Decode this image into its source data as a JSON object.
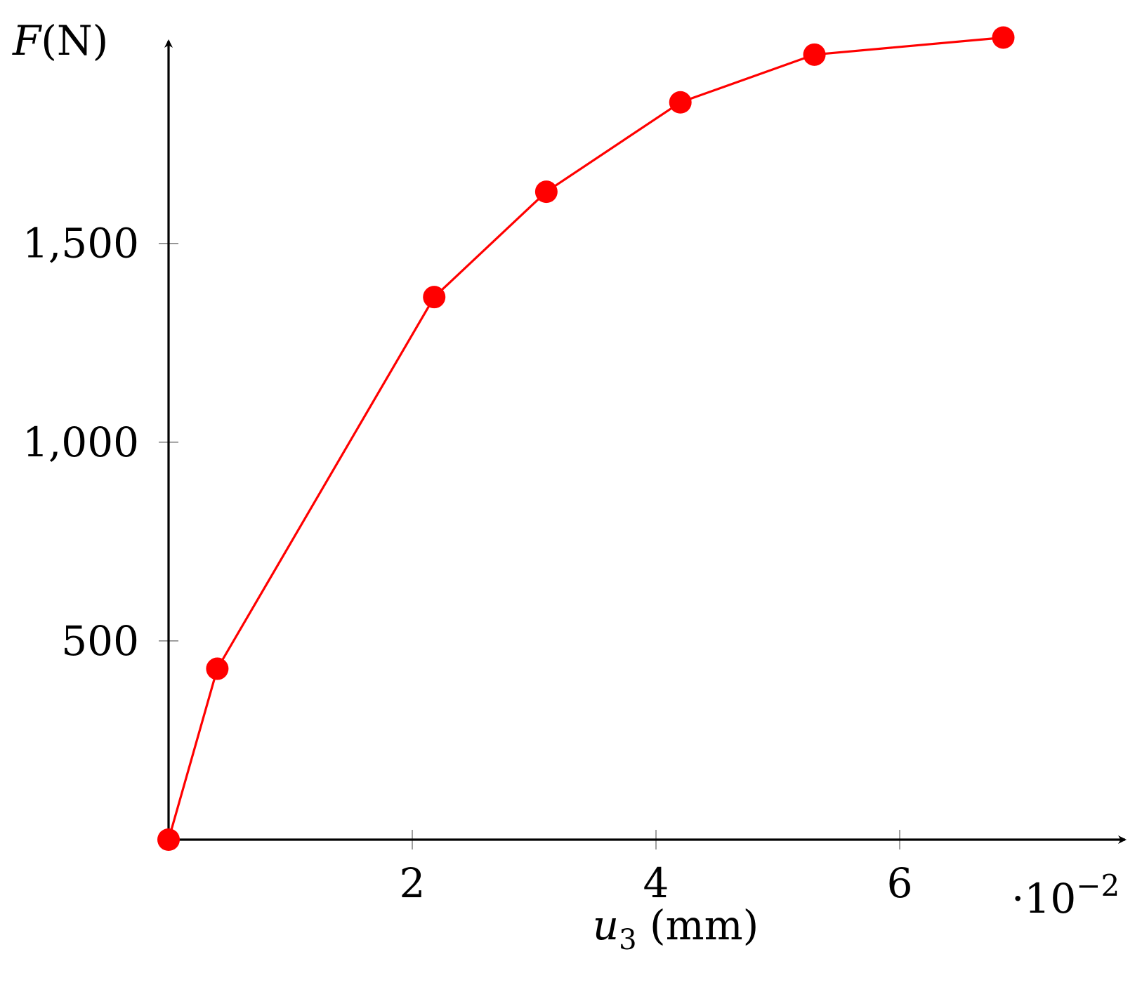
{
  "chart_data": {
    "type": "line",
    "series": [
      {
        "color": "#ff0000",
        "marker": "circle",
        "points": [
          {
            "x": 0.0,
            "y": 0
          },
          {
            "x": 0.4,
            "y": 430
          },
          {
            "x": 2.18,
            "y": 1365
          },
          {
            "x": 3.1,
            "y": 1630
          },
          {
            "x": 4.2,
            "y": 1855
          },
          {
            "x": 5.3,
            "y": 1975
          },
          {
            "x": 6.85,
            "y": 2018
          }
        ]
      }
    ],
    "x_ticks": [
      {
        "value": 2,
        "label": "2"
      },
      {
        "value": 4,
        "label": "4"
      },
      {
        "value": 6,
        "label": "6"
      }
    ],
    "y_ticks": [
      {
        "value": 500,
        "label": "500"
      },
      {
        "value": 1000,
        "label": "1,000"
      },
      {
        "value": 1500,
        "label": "1,500"
      }
    ],
    "xlim": [
      0,
      7.85
    ],
    "ylim": [
      0,
      2010
    ],
    "axis_style": "arrows-at-origin",
    "grid": false,
    "legend": "none",
    "x_scale_multiplier": {
      "prefix": "·10",
      "exponent": "−2"
    },
    "xlabel": {
      "symbol": "u",
      "subscript": "3",
      "unit": " (mm)"
    },
    "ylabel": {
      "symbol": "F",
      "unit": "(N)"
    }
  }
}
